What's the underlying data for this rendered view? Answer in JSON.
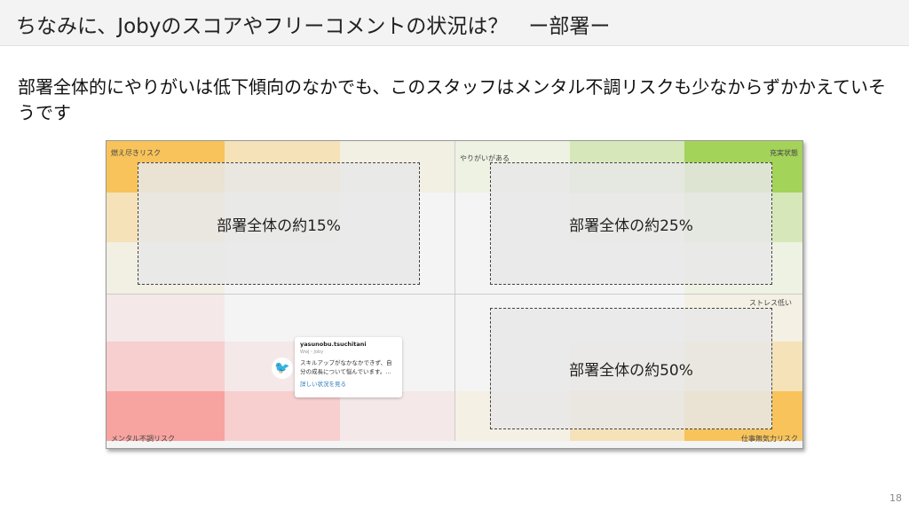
{
  "header": {
    "title": "ちなみに、Jobyのスコアやフリーコメントの状況は？　ー部署ー"
  },
  "subtitle": "部署全体的にやりがいは低下傾向のなかでも、このスタッフはメンタル不調リスクも少なからずかかえていそうです",
  "matrix": {
    "corner_labels": {
      "top_left": "燃え尽きリスク",
      "top_right": "充実状態",
      "bottom_left": "メンタル不調リスク",
      "bottom_right": "仕事無気力リスク"
    },
    "axis_labels": {
      "y_top": "やりがいがある",
      "x_right": "ストレス低い"
    },
    "regions": [
      "部署全体の約15%",
      "部署全体の約25%",
      "部署全体の約50%"
    ],
    "cell_colors": [
      [
        "#f7c35a",
        "#f5e2b8",
        "#f2efe3",
        "#eef2e3",
        "#d6e8b9",
        "#a4d35a"
      ],
      [
        "#f5e2b8",
        "#f2efe3",
        "#f4f4f4",
        "#f4f4f4",
        "#eef2e3",
        "#d6e8b9"
      ],
      [
        "#f2efe3",
        "#f4f4f4",
        "#f4f4f4",
        "#f4f4f4",
        "#f4f4f4",
        "#eef2e3"
      ],
      [
        "#f5e8e8",
        "#f4f4f4",
        "#f4f4f4",
        "#f4f4f4",
        "#f4f4f4",
        "#f4f0e4"
      ],
      [
        "#f8cfcf",
        "#f5e8e8",
        "#f4f4f4",
        "#f4f4f4",
        "#f4f0e4",
        "#f5e2b8"
      ],
      [
        "#f7a3a0",
        "#f8cfcf",
        "#f5e8e8",
        "#f4f0e4",
        "#f5e2b8",
        "#f7c35a"
      ]
    ],
    "card": {
      "name": "yasunobu.tsuchitani",
      "org": "WwJ・Joby",
      "comment": "スキルアップがなかなかできず、自分の成長について悩んでいます。...",
      "link": "詳しい状況を見る",
      "avatar_icon": "bird-icon"
    }
  },
  "page_number": "18"
}
